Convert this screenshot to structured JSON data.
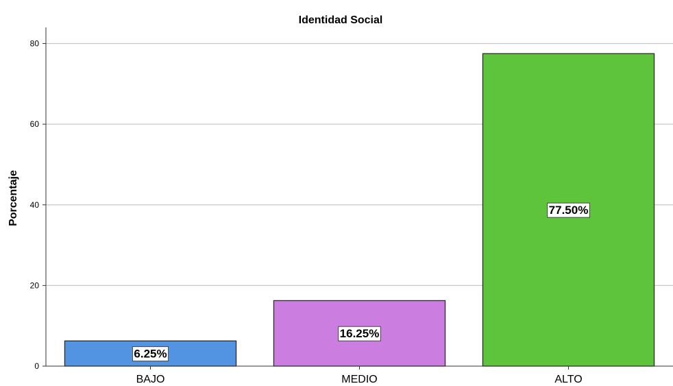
{
  "chart_data": {
    "type": "bar",
    "title": "Identidad Social",
    "xlabel": "",
    "ylabel": "Porcentaje",
    "categories": [
      "BAJO",
      "MEDIO",
      "ALTO"
    ],
    "values": [
      6.25,
      16.25,
      77.5
    ],
    "data_labels": [
      "6.25%",
      "16.25%",
      "77.50%"
    ],
    "colors": [
      "#5294e2",
      "#cc7de0",
      "#5ec43b"
    ],
    "ylim": [
      0,
      84
    ],
    "yticks": [
      0,
      20,
      40,
      60,
      80
    ],
    "grid": true
  }
}
